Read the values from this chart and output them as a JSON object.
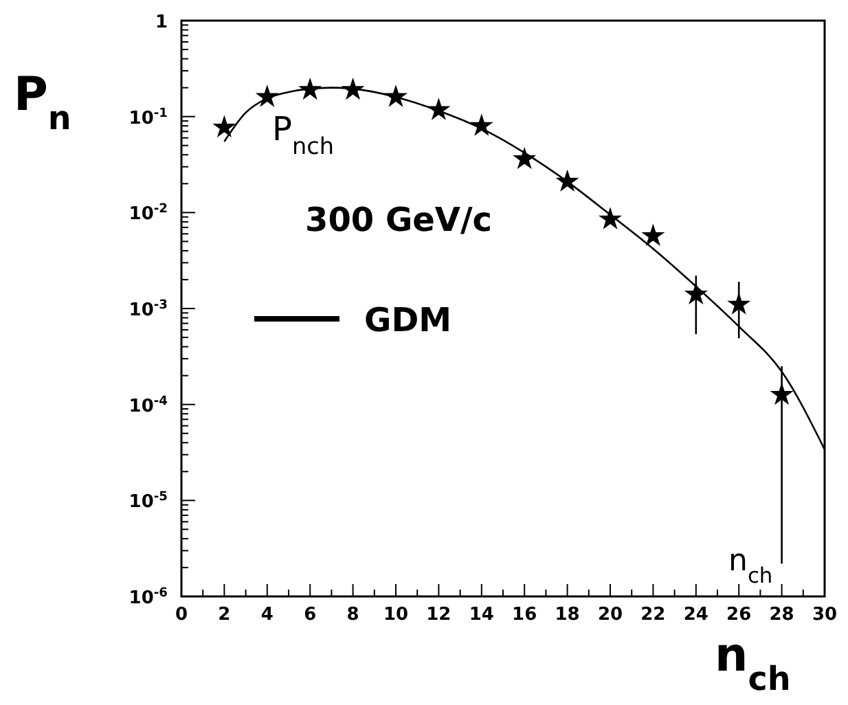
{
  "chart_data": {
    "type": "scatter",
    "ylabel": "P$_{n}$",
    "xlabel": "n$_{ch}$",
    "log": "y",
    "marker": "star",
    "legend": "left",
    "grid": false,
    "xlim": [
      0,
      30
    ],
    "xticks": [
      0,
      2,
      4,
      6,
      8,
      10,
      12,
      14,
      16,
      18,
      20,
      22,
      24,
      26,
      28,
      30
    ],
    "ylim": [
      1e-06,
      1
    ],
    "yticks": [
      {
        "value": 1e-06,
        "label": "10$^{-6}$"
      },
      {
        "value": 1e-05,
        "label": "10$^{-5}$"
      },
      {
        "value": 0.0001,
        "label": "10$^{-4}$"
      },
      {
        "value": 0.001,
        "label": "10$^{-3}$"
      },
      {
        "value": 0.01,
        "label": "10$^{-2}$"
      },
      {
        "value": 0.1,
        "label": "10$^{-1}$"
      },
      1
    ],
    "annotations": [
      "P$_{nch}$",
      "300 GeV/c",
      "n$_{ch}$"
    ],
    "series": [
      {
        "color": "#000000",
        "x": [
          2,
          4,
          6,
          8,
          10,
          12,
          14,
          16,
          18,
          20,
          22,
          24,
          26,
          28
        ],
        "values": [
          0.077,
          0.16,
          0.19,
          0.19,
          0.16,
          0.117,
          0.08,
          0.036,
          0.021,
          0.0085,
          0.0057,
          0.0014,
          0.0011,
          0.000126
        ],
        "errors": [
          null,
          null,
          null,
          null,
          null,
          null,
          null,
          null,
          null,
          null,
          null,
          [
            0.00054,
            0.0022
          ],
          [
            0.00049,
            0.0019
          ],
          [
            2.2e-06,
            0.00025
          ]
        ]
      },
      {
        "type": "line",
        "name": "GDM",
        "color": "#000000",
        "line_style": "solid",
        "marker": "none",
        "x": [
          2,
          3,
          4,
          5,
          6,
          7,
          8,
          10,
          12,
          14,
          16,
          18,
          20,
          22,
          24,
          26,
          28,
          30
        ],
        "values": [
          0.055,
          0.11,
          0.155,
          0.18,
          0.195,
          0.2,
          0.195,
          0.16,
          0.115,
          0.075,
          0.042,
          0.021,
          0.0095,
          0.0042,
          0.0017,
          0.00065,
          0.00022,
          3.4e-05
        ]
      }
    ]
  }
}
